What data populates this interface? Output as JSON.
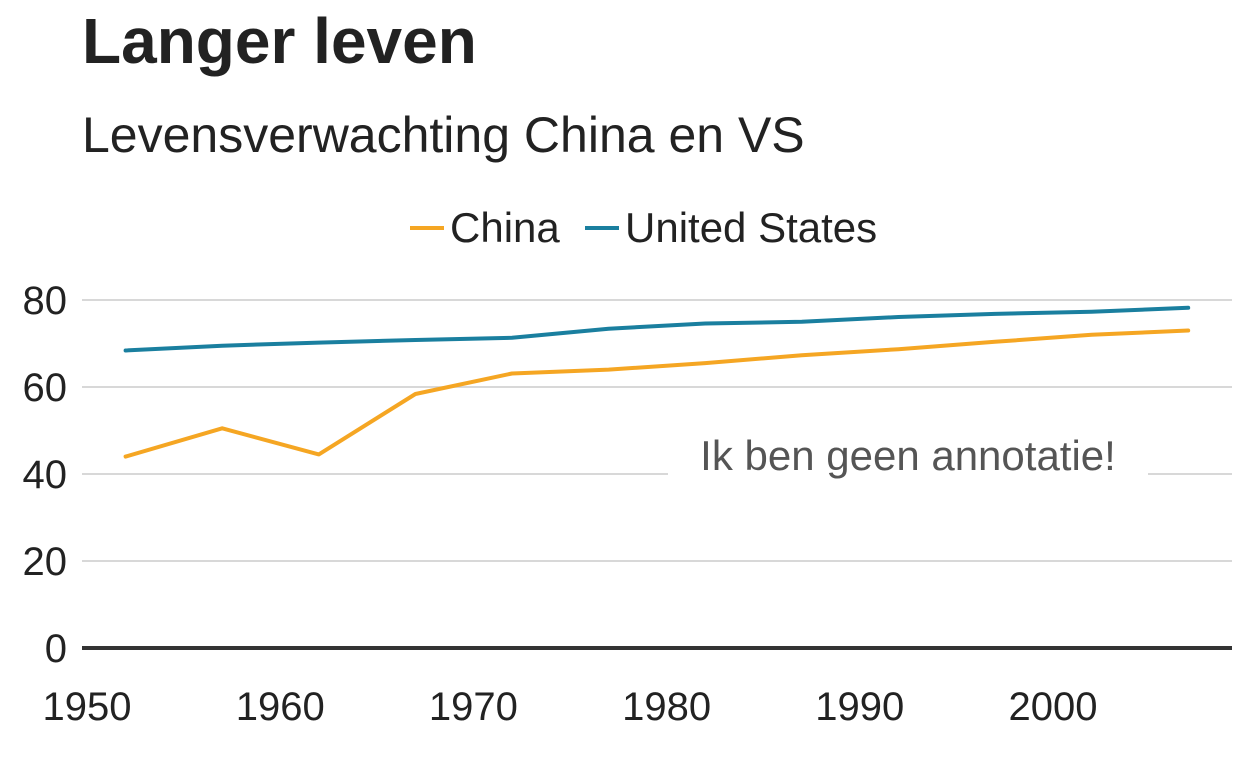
{
  "header": {
    "title": "Langer leven",
    "subtitle": "Levensverwachting China en VS"
  },
  "chart_data": {
    "type": "line",
    "title": "Langer leven",
    "subtitle": "Levensverwachting China en VS",
    "xlabel": "",
    "ylabel": "",
    "x": [
      1952,
      1957,
      1962,
      1967,
      1972,
      1977,
      1982,
      1987,
      1992,
      1997,
      2002,
      2007
    ],
    "series": [
      {
        "name": "China",
        "color": "#f5a623",
        "values": [
          44.0,
          50.5,
          44.5,
          58.4,
          63.1,
          64.0,
          65.5,
          67.3,
          68.7,
          70.4,
          72.0,
          73.0
        ]
      },
      {
        "name": "United States",
        "color": "#1a7f9f",
        "values": [
          68.4,
          69.5,
          70.2,
          70.8,
          71.3,
          73.4,
          74.6,
          75.0,
          76.1,
          76.8,
          77.3,
          78.2
        ]
      }
    ],
    "xlim": [
      1950,
      2010
    ],
    "ylim": [
      0,
      80
    ],
    "x_ticks": [
      "1950",
      "1960",
      "1970",
      "1980",
      "1990",
      "2000"
    ],
    "y_ticks": [
      "0",
      "20",
      "40",
      "60",
      "80"
    ],
    "grid": true,
    "legend_position": "top-center",
    "annotation": "Ik ben geen annotatie!"
  },
  "colors": {
    "grid": "#cccccc",
    "baseline": "#333333",
    "text": "#222222",
    "annotation_text": "#555555"
  }
}
